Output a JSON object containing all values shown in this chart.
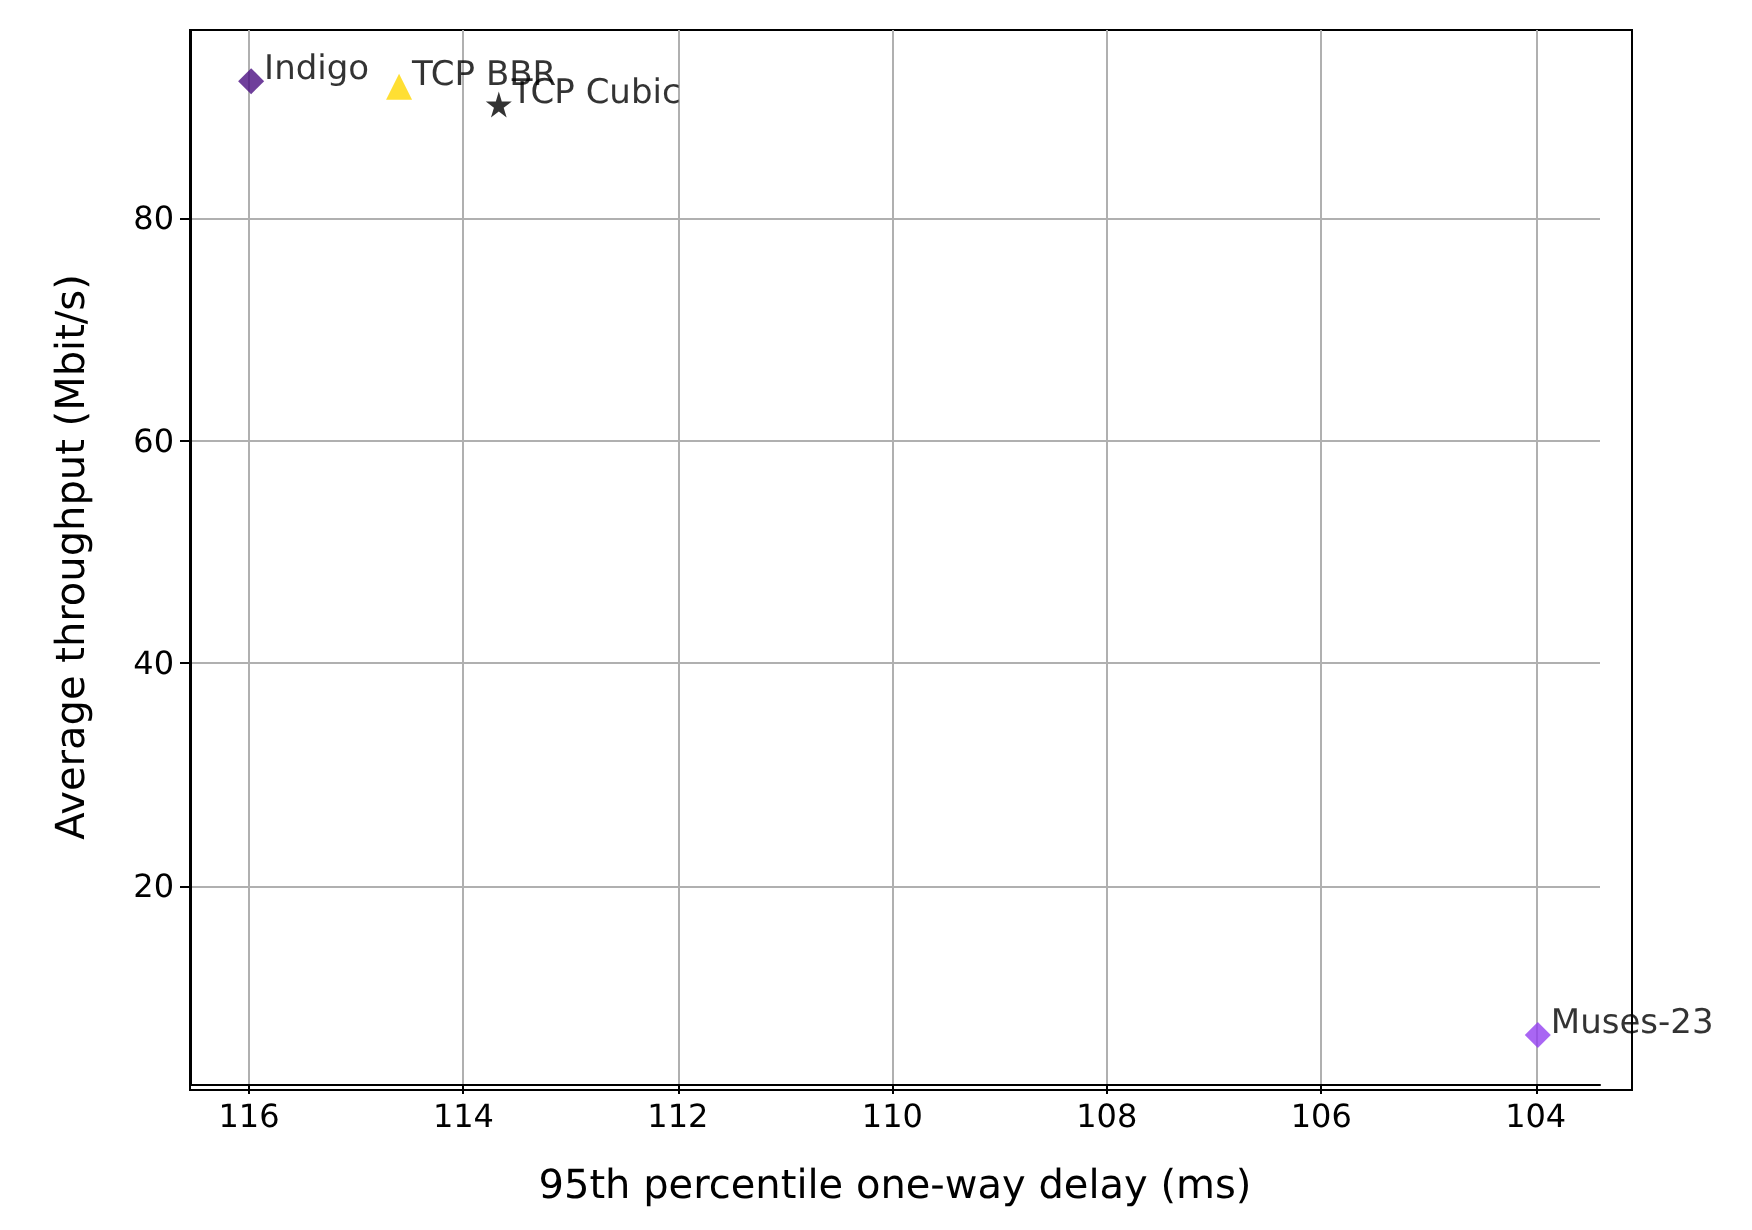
{
  "chart_data": {
    "type": "scatter",
    "xlabel": "95th percentile one-way delay (ms)",
    "ylabel": "Average throughput (Mbit/s)",
    "xlim": [
      116.55,
      103.4
    ],
    "xticks": [
      116,
      114,
      112,
      110,
      108,
      106,
      104
    ],
    "ylim": [
      2.2,
      96.9
    ],
    "yticks": [
      20,
      40,
      60,
      80
    ],
    "grid": true,
    "legend": false,
    "series": [
      {
        "name": "Indigo",
        "color": "#4b0f82",
        "marker": "diamond",
        "x": [
          115.98
        ],
        "values": [
          92.3
        ]
      },
      {
        "name": "TCP BBR",
        "color": "#ffd700",
        "marker": "triangle",
        "x": [
          114.6
        ],
        "values": [
          91.8
        ]
      },
      {
        "name": "TCP Cubic",
        "color": "#000000",
        "marker": "star",
        "x": [
          113.67
        ],
        "values": [
          90.2
        ]
      },
      {
        "name": "Muses-23",
        "color": "#9440f0",
        "marker": "diamond",
        "x": [
          103.98
        ],
        "values": [
          6.6
        ]
      }
    ]
  }
}
